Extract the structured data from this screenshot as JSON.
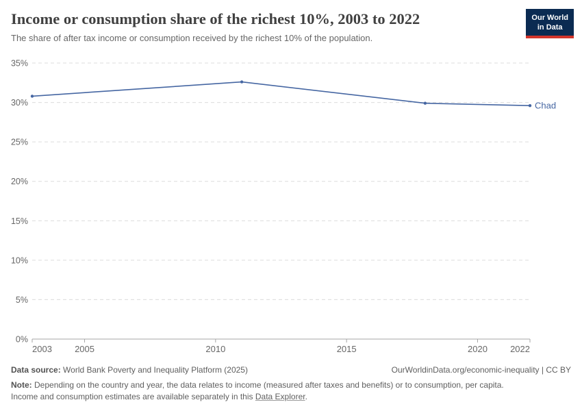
{
  "header": {
    "title": "Income or consumption share of the richest 10%, 2003 to 2022",
    "subtitle": "The share of after tax income or consumption received by the richest 10% of the population.",
    "logo": {
      "line1": "Our World",
      "line2": "in Data"
    }
  },
  "chart_data": {
    "type": "line",
    "title": "Income or consumption share of the richest 10%, 2003 to 2022",
    "xlabel": "",
    "ylabel": "",
    "xlim": [
      2003,
      2022
    ],
    "ylim": [
      0,
      35
    ],
    "xticks": [
      2003,
      2005,
      2010,
      2015,
      2020,
      2022
    ],
    "yticks": [
      0,
      5,
      10,
      15,
      20,
      25,
      30,
      35
    ],
    "y_tick_suffix": "%",
    "grid": "horizontal-dashed",
    "legend_position": "end-of-line-label",
    "series": [
      {
        "name": "Chad",
        "color": "#4566A2",
        "points": [
          [
            2003,
            30.8
          ],
          [
            2011,
            32.6
          ],
          [
            2018,
            29.9
          ],
          [
            2022,
            29.6
          ]
        ]
      }
    ]
  },
  "footer": {
    "data_source_label": "Data source:",
    "data_source": "World Bank Poverty and Inequality Platform (2025)",
    "attribution": "OurWorldinData.org/economic-inequality | CC BY",
    "note_label": "Note:",
    "note_line1": "Depending on the country and year, the data relates to income (measured after taxes and benefits) or to consumption, per capita.",
    "note_line2": "Income and consumption estimates are available separately in this",
    "note_link": "Data Explorer",
    "note_suffix": "."
  },
  "colors": {
    "series": "#4566A2",
    "title": "#404040",
    "subtitle": "#666666",
    "axis_text": "#666666",
    "axis_line": "#a5a5a5",
    "gridline": "#dcdcdc",
    "logo_bg": "#0b2b52",
    "logo_accent": "#d2352b"
  }
}
